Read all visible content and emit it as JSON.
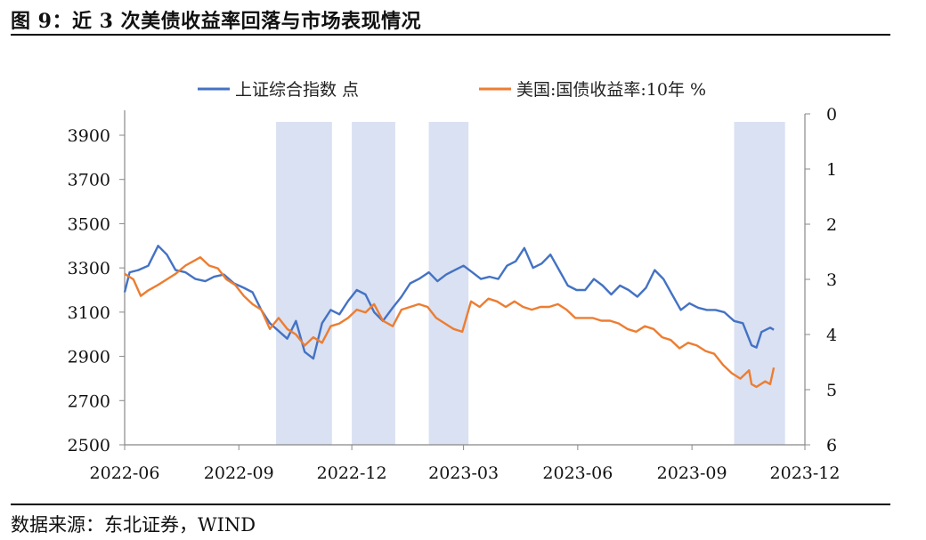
{
  "title": "图 9：近 3 次美债收益率回落与市场表现情况",
  "source": "数据来源：东北证券，WIND",
  "chart_data": {
    "type": "line",
    "legend_position": "top",
    "x_ticks": [
      "2022-06",
      "2022-09",
      "2022-12",
      "2023-03",
      "2023-06",
      "2023-09",
      "2023-12"
    ],
    "y_left": {
      "ticks": [
        "2500",
        "2700",
        "2900",
        "3100",
        "3300",
        "3500",
        "3700",
        "3900"
      ],
      "range": [
        2500,
        3900
      ]
    },
    "y_right": {
      "ticks": [
        "0",
        "1",
        "2",
        "3",
        "4",
        "5",
        "6"
      ],
      "range": [
        0,
        6
      ],
      "inverted": true
    },
    "shaded_periods": [
      [
        "2022-10-01",
        "2022-11-15"
      ],
      [
        "2022-12-01",
        "2023-01-05"
      ],
      [
        "2023-02-01",
        "2023-03-05"
      ],
      [
        "2023-10-05",
        "2023-11-15"
      ]
    ],
    "series": [
      {
        "name": "上证综合指数 点",
        "axis": "left",
        "color": "#4472C4",
        "points": [
          [
            "2022-06-01",
            3190
          ],
          [
            "2022-06-05",
            3280
          ],
          [
            "2022-06-12",
            3290
          ],
          [
            "2022-06-20",
            3310
          ],
          [
            "2022-06-28",
            3400
          ],
          [
            "2022-07-05",
            3360
          ],
          [
            "2022-07-12",
            3290
          ],
          [
            "2022-07-20",
            3280
          ],
          [
            "2022-07-28",
            3250
          ],
          [
            "2022-08-05",
            3240
          ],
          [
            "2022-08-12",
            3260
          ],
          [
            "2022-08-20",
            3270
          ],
          [
            "2022-08-28",
            3230
          ],
          [
            "2022-09-05",
            3210
          ],
          [
            "2022-09-12",
            3190
          ],
          [
            "2022-09-19",
            3110
          ],
          [
            "2022-09-26",
            3050
          ],
          [
            "2022-10-10",
            2980
          ],
          [
            "2022-10-17",
            3060
          ],
          [
            "2022-10-24",
            2920
          ],
          [
            "2022-10-31",
            2890
          ],
          [
            "2022-11-07",
            3050
          ],
          [
            "2022-11-14",
            3110
          ],
          [
            "2022-11-21",
            3090
          ],
          [
            "2022-11-28",
            3150
          ],
          [
            "2022-12-05",
            3200
          ],
          [
            "2022-12-12",
            3180
          ],
          [
            "2022-12-19",
            3100
          ],
          [
            "2022-12-26",
            3060
          ],
          [
            "2023-01-03",
            3120
          ],
          [
            "2023-01-10",
            3170
          ],
          [
            "2023-01-17",
            3230
          ],
          [
            "2023-01-24",
            3250
          ],
          [
            "2023-02-01",
            3280
          ],
          [
            "2023-02-08",
            3240
          ],
          [
            "2023-02-15",
            3270
          ],
          [
            "2023-02-22",
            3290
          ],
          [
            "2023-03-01",
            3310
          ],
          [
            "2023-03-08",
            3280
          ],
          [
            "2023-03-15",
            3250
          ],
          [
            "2023-03-22",
            3260
          ],
          [
            "2023-03-29",
            3250
          ],
          [
            "2023-04-05",
            3310
          ],
          [
            "2023-04-12",
            3330
          ],
          [
            "2023-04-19",
            3390
          ],
          [
            "2023-04-26",
            3300
          ],
          [
            "2023-05-03",
            3320
          ],
          [
            "2023-05-10",
            3360
          ],
          [
            "2023-05-17",
            3290
          ],
          [
            "2023-05-24",
            3220
          ],
          [
            "2023-05-31",
            3200
          ],
          [
            "2023-06-07",
            3200
          ],
          [
            "2023-06-14",
            3250
          ],
          [
            "2023-06-21",
            3220
          ],
          [
            "2023-06-28",
            3180
          ],
          [
            "2023-07-05",
            3220
          ],
          [
            "2023-07-12",
            3200
          ],
          [
            "2023-07-19",
            3170
          ],
          [
            "2023-07-26",
            3210
          ],
          [
            "2023-08-02",
            3290
          ],
          [
            "2023-08-09",
            3250
          ],
          [
            "2023-08-16",
            3180
          ],
          [
            "2023-08-23",
            3110
          ],
          [
            "2023-08-30",
            3140
          ],
          [
            "2023-09-06",
            3120
          ],
          [
            "2023-09-13",
            3110
          ],
          [
            "2023-09-20",
            3110
          ],
          [
            "2023-09-27",
            3100
          ],
          [
            "2023-10-05",
            3060
          ],
          [
            "2023-10-12",
            3050
          ],
          [
            "2023-10-19",
            2950
          ],
          [
            "2023-10-23",
            2940
          ],
          [
            "2023-10-27",
            3010
          ],
          [
            "2023-11-03",
            3030
          ],
          [
            "2023-11-06",
            3020
          ]
        ]
      },
      {
        "name": "美国:国债收益率:10年 %",
        "axis": "right",
        "color": "#ED7D31",
        "points": [
          [
            "2022-06-01",
            2.9
          ],
          [
            "2022-06-08",
            3.0
          ],
          [
            "2022-06-14",
            3.3
          ],
          [
            "2022-06-20",
            3.2
          ],
          [
            "2022-06-28",
            3.1
          ],
          [
            "2022-07-05",
            3.0
          ],
          [
            "2022-07-12",
            2.9
          ],
          [
            "2022-07-20",
            2.75
          ],
          [
            "2022-07-28",
            2.65
          ],
          [
            "2022-08-01",
            2.6
          ],
          [
            "2022-08-08",
            2.75
          ],
          [
            "2022-08-15",
            2.8
          ],
          [
            "2022-08-22",
            3.0
          ],
          [
            "2022-08-29",
            3.1
          ],
          [
            "2022-09-05",
            3.3
          ],
          [
            "2022-09-12",
            3.45
          ],
          [
            "2022-09-19",
            3.55
          ],
          [
            "2022-09-26",
            3.9
          ],
          [
            "2022-10-03",
            3.7
          ],
          [
            "2022-10-10",
            3.9
          ],
          [
            "2022-10-17",
            4.0
          ],
          [
            "2022-10-24",
            4.2
          ],
          [
            "2022-10-31",
            4.05
          ],
          [
            "2022-11-07",
            4.15
          ],
          [
            "2022-11-14",
            3.85
          ],
          [
            "2022-11-21",
            3.8
          ],
          [
            "2022-11-28",
            3.7
          ],
          [
            "2022-12-05",
            3.55
          ],
          [
            "2022-12-12",
            3.6
          ],
          [
            "2022-12-19",
            3.45
          ],
          [
            "2022-12-26",
            3.75
          ],
          [
            "2023-01-03",
            3.85
          ],
          [
            "2023-01-10",
            3.55
          ],
          [
            "2023-01-17",
            3.5
          ],
          [
            "2023-01-24",
            3.45
          ],
          [
            "2023-01-31",
            3.5
          ],
          [
            "2023-02-07",
            3.7
          ],
          [
            "2023-02-14",
            3.8
          ],
          [
            "2023-02-21",
            3.9
          ],
          [
            "2023-02-28",
            3.95
          ],
          [
            "2023-03-07",
            3.4
          ],
          [
            "2023-03-14",
            3.5
          ],
          [
            "2023-03-21",
            3.35
          ],
          [
            "2023-03-28",
            3.4
          ],
          [
            "2023-04-04",
            3.5
          ],
          [
            "2023-04-11",
            3.4
          ],
          [
            "2023-04-18",
            3.5
          ],
          [
            "2023-04-25",
            3.55
          ],
          [
            "2023-05-02",
            3.5
          ],
          [
            "2023-05-09",
            3.5
          ],
          [
            "2023-05-16",
            3.45
          ],
          [
            "2023-05-23",
            3.55
          ],
          [
            "2023-05-30",
            3.7
          ],
          [
            "2023-06-06",
            3.7
          ],
          [
            "2023-06-13",
            3.7
          ],
          [
            "2023-06-20",
            3.75
          ],
          [
            "2023-06-27",
            3.75
          ],
          [
            "2023-07-04",
            3.8
          ],
          [
            "2023-07-11",
            3.9
          ],
          [
            "2023-07-18",
            3.95
          ],
          [
            "2023-07-25",
            3.85
          ],
          [
            "2023-08-01",
            3.9
          ],
          [
            "2023-08-08",
            4.05
          ],
          [
            "2023-08-15",
            4.1
          ],
          [
            "2023-08-22",
            4.25
          ],
          [
            "2023-08-29",
            4.15
          ],
          [
            "2023-09-05",
            4.2
          ],
          [
            "2023-09-12",
            4.3
          ],
          [
            "2023-09-19",
            4.35
          ],
          [
            "2023-09-26",
            4.55
          ],
          [
            "2023-10-03",
            4.7
          ],
          [
            "2023-10-10",
            4.8
          ],
          [
            "2023-10-17",
            4.65
          ],
          [
            "2023-10-19",
            4.9
          ],
          [
            "2023-10-23",
            4.95
          ],
          [
            "2023-10-30",
            4.85
          ],
          [
            "2023-11-03",
            4.9
          ],
          [
            "2023-11-06",
            4.6
          ]
        ]
      }
    ]
  }
}
